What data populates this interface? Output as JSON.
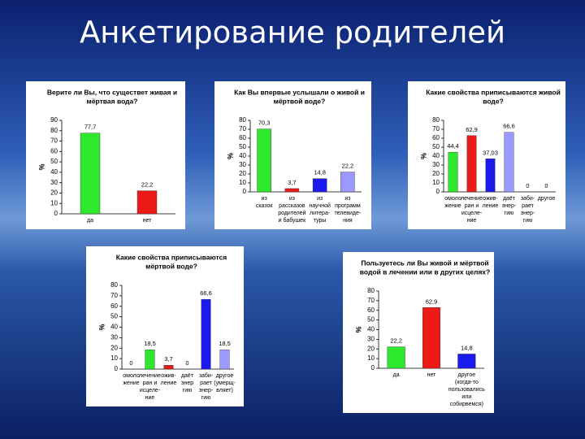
{
  "title": "Анкетирование родителей",
  "chart_data": [
    {
      "type": "bar",
      "title": [
        "Верите ли Вы, что существет живая и",
        "мёртвая вода?"
      ],
      "ylabel": "%",
      "categories": [
        [
          "да"
        ],
        [
          "нет"
        ]
      ],
      "values": [
        77.7,
        22.2
      ],
      "value_labels": [
        "77,7",
        "22,2"
      ],
      "colors": [
        "#2ee82e",
        "#ee1a1a"
      ],
      "ylim": [
        0,
        90
      ],
      "yticks": [
        0,
        10,
        20,
        30,
        40,
        50,
        60,
        70,
        80,
        90
      ]
    },
    {
      "type": "bar",
      "title": [
        "Как Вы впервые услышали о живой и",
        "мёртвой воде?"
      ],
      "ylabel": "%",
      "categories": [
        [
          "из",
          "сказок"
        ],
        [
          "из",
          "рассказов",
          "родителей",
          "и бабушек"
        ],
        [
          "из",
          "научной",
          "литера-",
          "туры"
        ],
        [
          "из",
          "программ",
          "телевиде-",
          "ния"
        ]
      ],
      "values": [
        70.3,
        3.7,
        14.8,
        22.2
      ],
      "value_labels": [
        "70,3",
        "3,7",
        "14,8",
        "22,2"
      ],
      "colors": [
        "#2ee82e",
        "#ee1a1a",
        "#1a1aee",
        "#9999ff"
      ],
      "ylim": [
        0,
        80
      ],
      "yticks": [
        0,
        10,
        20,
        30,
        40,
        50,
        60,
        70,
        80
      ]
    },
    {
      "type": "bar",
      "title": [
        "Какие свойства приписываются живой",
        "воде?"
      ],
      "ylabel": "%",
      "categories": [
        [
          "омоло",
          "жение"
        ],
        [
          "лечение",
          "ран и",
          "исцеле-",
          "ние"
        ],
        [
          "ожив-",
          "ление"
        ],
        [
          "даёт",
          "энер-",
          "гию"
        ],
        [
          "заби-",
          "рает",
          "энер-",
          "гию"
        ],
        [
          "другое"
        ]
      ],
      "values": [
        44.4,
        62.9,
        37.03,
        66.6,
        0,
        0
      ],
      "value_labels": [
        "44,4",
        "62,9",
        "37,03",
        "66,6",
        "0",
        "0"
      ],
      "colors": [
        "#2ee82e",
        "#ee1a1a",
        "#1a1aee",
        "#9999ff",
        "#1a1aee",
        "#9999ff"
      ],
      "ylim": [
        0,
        80
      ],
      "yticks": [
        0,
        10,
        20,
        30,
        40,
        50,
        60,
        70,
        80
      ]
    },
    {
      "type": "bar",
      "title": [
        "Какие свойства приписываются",
        "мёртвой воде?"
      ],
      "ylabel": "%",
      "categories": [
        [
          "омоло",
          "жение"
        ],
        [
          "лечение",
          "ран и",
          "исцеле-",
          "ние"
        ],
        [
          "ожив-",
          "ление"
        ],
        [
          "даёт",
          "энер",
          "гию"
        ],
        [
          "заби-",
          "рает",
          "энер-",
          "гию"
        ],
        [
          "другое",
          "(умерщ-",
          "вляет)"
        ]
      ],
      "values": [
        0,
        18.5,
        3.7,
        0,
        66.6,
        18.5
      ],
      "value_labels": [
        "0",
        "18,5",
        "3,7",
        "0",
        "66,6",
        "18,5"
      ],
      "colors": [
        "#2ee82e",
        "#2ee82e",
        "#ee1a1a",
        "#9999ff",
        "#1a1aee",
        "#9999ff"
      ],
      "ylim": [
        0,
        80
      ],
      "yticks": [
        0,
        10,
        20,
        30,
        40,
        50,
        60,
        70,
        80
      ]
    },
    {
      "type": "bar",
      "title": [
        "Пользуетесь ли Вы живой и мёртвой",
        "водой в лечении или в других целях?"
      ],
      "ylabel": "%",
      "categories": [
        [
          "да"
        ],
        [
          "нет"
        ],
        [
          "другое",
          "(когда-то",
          "пользовались",
          "или",
          "собирвемся)"
        ]
      ],
      "values": [
        22.2,
        62.9,
        14.8
      ],
      "value_labels": [
        "22,2",
        "62,9",
        "14,8"
      ],
      "colors": [
        "#2ee82e",
        "#ee1a1a",
        "#1a1aee"
      ],
      "ylim": [
        0,
        80
      ],
      "yticks": [
        0,
        10,
        20,
        30,
        40,
        50,
        60,
        70,
        80
      ]
    }
  ]
}
